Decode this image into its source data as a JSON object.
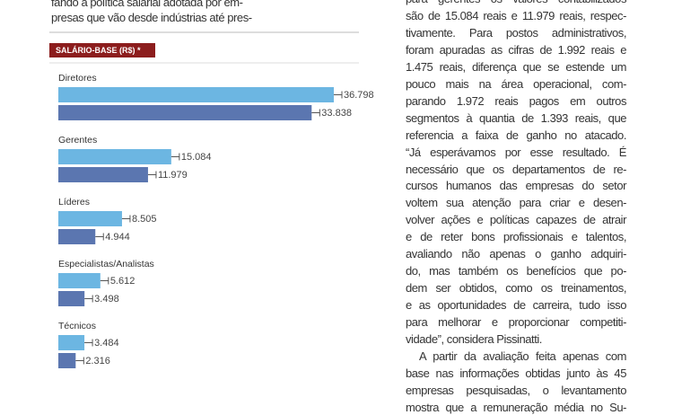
{
  "left_text": {
    "lines": [
      "fando a política salarial adotada por em-",
      "presas que vão desde indústrias até pres-"
    ]
  },
  "chart_data": {
    "type": "bar",
    "orientation": "horizontal",
    "title": "SALÁRIO-BASE (R$) *",
    "categories": [
      "Diretores",
      "Gerentes",
      "Líderes",
      "Especialistas/Analistas",
      "Técnicos"
    ],
    "series": [
      {
        "color": "#6cb6e2",
        "values": [
          36798,
          15084,
          8505,
          5612,
          3484
        ],
        "value_labels": [
          "36.798",
          "15.084",
          "8.505",
          "5.612",
          "3.484"
        ]
      },
      {
        "color": "#5b76b0",
        "values": [
          33838,
          11979,
          4944,
          3498,
          2316
        ],
        "value_labels": [
          "33.838",
          "11.979",
          "4.944",
          "3.498",
          "2.316"
        ]
      }
    ]
  },
  "right_text": {
    "lines": [
      "para gerentes os valores contabilizados",
      "são de 15.084 reais e 11.979 reais, respec-",
      "tivamente. Para postos administrativos,",
      "foram apuradas as cifras de 1.992 reais e",
      "1.475 reais, diferença que se estende um",
      "pouco mais  na área operacional, com-",
      "parando 1.972 reais pagos em outros",
      "segmentos à  quantia de 1.393 reais, que",
      "referencia a faixa de ganho no atacado.",
      "“Já esperávamos por esse resultado. É",
      "necessário que os departamentos de re-",
      "cursos humanos das empresas do setor",
      "voltem sua atenção para criar e desen-",
      "volver ações e políticas capazes de atrair",
      "e de reter bons profissionais e talentos,",
      "avaliando não apenas o ganho adquiri-",
      "do, mas também os benefícios que po-",
      "dem ser obtidos, como os treinamentos,",
      "e as oportunidades de carreira, tudo isso",
      "para melhorar e proporcionar competiti-",
      "vidade”, considera Pissinatti.",
      "A partir da avaliação feita apenas com",
      "base nas informações obtidas junto às 45",
      "empresas pesquisadas, o levantamento",
      "mostra que a remuneração média no Su-"
    ]
  }
}
